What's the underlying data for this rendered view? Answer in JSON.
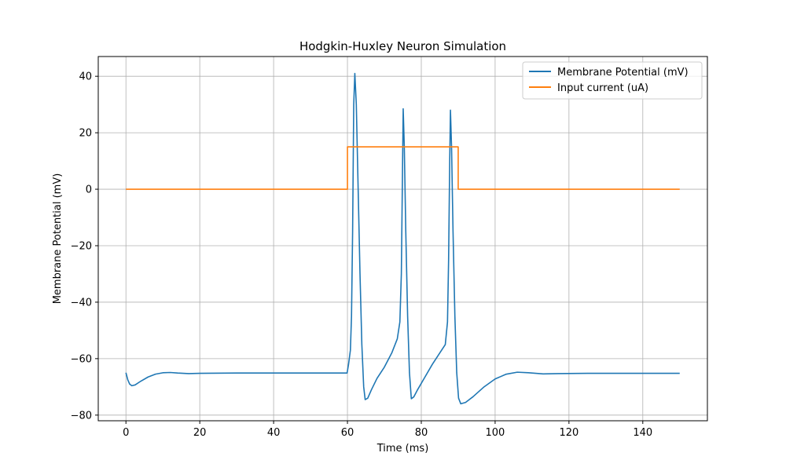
{
  "chart_data": {
    "type": "line",
    "title": "Hodgkin-Huxley Neuron Simulation",
    "xlabel": "Time (ms)",
    "ylabel": "Membrane Potential (mV)",
    "xlim": [
      -7.5,
      157.5
    ],
    "ylim": [
      -82,
      47
    ],
    "xticks": [
      0,
      20,
      40,
      60,
      80,
      100,
      120,
      140
    ],
    "yticks": [
      -80,
      -60,
      -40,
      -20,
      0,
      20,
      40
    ],
    "xtick_labels": [
      "0",
      "20",
      "40",
      "60",
      "80",
      "100",
      "120",
      "140"
    ],
    "ytick_labels": [
      "−80",
      "−60",
      "−40",
      "−20",
      "0",
      "20",
      "40"
    ],
    "grid": true,
    "legend_position": "top-right",
    "series": [
      {
        "name": "Membrane Potential (mV)",
        "color": "#1f77b4",
        "points": [
          [
            0,
            -65
          ],
          [
            0.5,
            -67.5
          ],
          [
            1,
            -69
          ],
          [
            1.6,
            -69.6
          ],
          [
            2.5,
            -69.3
          ],
          [
            4,
            -68
          ],
          [
            6,
            -66.5
          ],
          [
            8,
            -65.5
          ],
          [
            10,
            -65
          ],
          [
            12,
            -64.9
          ],
          [
            14,
            -65.1
          ],
          [
            17,
            -65.3
          ],
          [
            20,
            -65.2
          ],
          [
            30,
            -65.1
          ],
          [
            40,
            -65.1
          ],
          [
            50,
            -65.1
          ],
          [
            59.9,
            -65.1
          ],
          [
            60.3,
            -62
          ],
          [
            60.8,
            -57
          ],
          [
            61.1,
            -45
          ],
          [
            61.4,
            -15
          ],
          [
            61.7,
            30
          ],
          [
            62,
            41
          ],
          [
            62.4,
            30
          ],
          [
            62.9,
            0
          ],
          [
            63.4,
            -30
          ],
          [
            63.9,
            -55
          ],
          [
            64.4,
            -70
          ],
          [
            64.8,
            -74.5
          ],
          [
            65.5,
            -74
          ],
          [
            66.5,
            -71
          ],
          [
            68,
            -67
          ],
          [
            70,
            -63
          ],
          [
            72,
            -58
          ],
          [
            73.5,
            -53
          ],
          [
            74.2,
            -47
          ],
          [
            74.6,
            -30
          ],
          [
            74.9,
            5
          ],
          [
            75.1,
            28.5
          ],
          [
            75.4,
            15
          ],
          [
            75.8,
            -15
          ],
          [
            76.3,
            -45
          ],
          [
            76.8,
            -65
          ],
          [
            77.3,
            -74.2
          ],
          [
            78,
            -73.5
          ],
          [
            79,
            -71
          ],
          [
            81,
            -66.5
          ],
          [
            83,
            -62
          ],
          [
            85,
            -58
          ],
          [
            86.5,
            -55
          ],
          [
            87.1,
            -47
          ],
          [
            87.4,
            -25
          ],
          [
            87.7,
            10
          ],
          [
            87.9,
            28
          ],
          [
            88.2,
            15
          ],
          [
            88.6,
            -15
          ],
          [
            89.1,
            -45
          ],
          [
            89.6,
            -65
          ],
          [
            90.1,
            -74
          ],
          [
            90.7,
            -76
          ],
          [
            92,
            -75.5
          ],
          [
            94,
            -73.5
          ],
          [
            97,
            -70
          ],
          [
            100,
            -67.2
          ],
          [
            103,
            -65.5
          ],
          [
            106,
            -64.8
          ],
          [
            109,
            -65
          ],
          [
            113,
            -65.4
          ],
          [
            117,
            -65.3
          ],
          [
            125,
            -65.2
          ],
          [
            135,
            -65.2
          ],
          [
            150,
            -65.2
          ]
        ]
      },
      {
        "name": "Input current (uA)",
        "color": "#ff7f0e",
        "points": [
          [
            0,
            0
          ],
          [
            60,
            0
          ],
          [
            60,
            15
          ],
          [
            90,
            15
          ],
          [
            90,
            0
          ],
          [
            150,
            0
          ]
        ]
      }
    ]
  }
}
